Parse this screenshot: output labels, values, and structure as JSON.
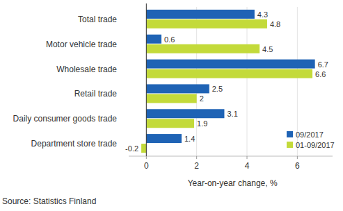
{
  "chart_data": {
    "type": "bar",
    "orientation": "horizontal",
    "categories": [
      "Total trade",
      "Motor vehicle trade",
      "Wholesale trade",
      "Retail trade",
      "Daily consumer goods trade",
      "Department store trade"
    ],
    "series": [
      {
        "name": "09/2017",
        "color": "#1f63b5",
        "values": [
          4.3,
          0.6,
          6.7,
          2.5,
          3.1,
          1.4
        ]
      },
      {
        "name": "01-09/2017",
        "color": "#c3da3a",
        "values": [
          4.8,
          4.5,
          6.6,
          2.0,
          1.9,
          -0.2
        ]
      }
    ],
    "x_label": "Year-on-year change, %",
    "xlim": [
      -0.7,
      7.4
    ],
    "xticks": [
      0,
      2,
      4,
      6
    ],
    "grid": true,
    "data_labels": true,
    "legend": "lower right",
    "source": "Source: Statistics Finland"
  }
}
